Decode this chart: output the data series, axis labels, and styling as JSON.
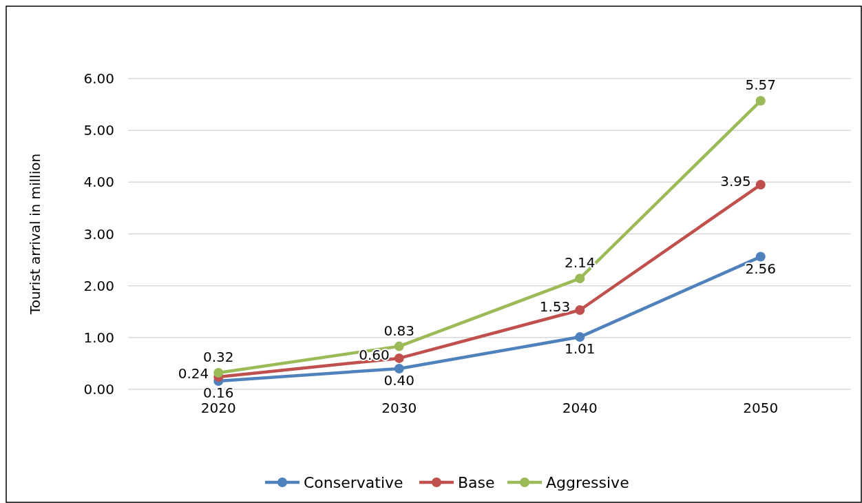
{
  "chart_data": {
    "type": "line",
    "ylabel": "Tourist arrival in million",
    "categories": [
      "2020",
      "2030",
      "2040",
      "2050"
    ],
    "series": [
      {
        "name": "Conservative",
        "color": "#4f81bd",
        "values": [
          0.16,
          0.4,
          1.01,
          2.56
        ],
        "value_labels": [
          "0.16",
          "0.40",
          "1.01",
          "2.56"
        ]
      },
      {
        "name": "Base",
        "color": "#c0504d",
        "values": [
          0.24,
          0.6,
          1.53,
          3.95
        ],
        "value_labels": [
          "0.24",
          "0.60",
          "1.53",
          "3.95"
        ]
      },
      {
        "name": "Aggressive",
        "color": "#9bbb59",
        "values": [
          0.32,
          0.83,
          2.14,
          5.57
        ],
        "value_labels": [
          "0.32",
          "0.83",
          "2.14",
          "5.57"
        ]
      }
    ],
    "ylim": [
      0,
      6
    ],
    "yticks": [
      {
        "value": 0,
        "label": "0.00"
      },
      {
        "value": 1,
        "label": "1.00"
      },
      {
        "value": 2,
        "label": "2.00"
      },
      {
        "value": 3,
        "label": "3.00"
      },
      {
        "value": 4,
        "label": "4.00"
      },
      {
        "value": 5,
        "label": "5.00"
      },
      {
        "value": 6,
        "label": "6.00"
      }
    ],
    "grid": "y",
    "legend": "bottom",
    "marker": "circle",
    "line_style": "solid"
  }
}
